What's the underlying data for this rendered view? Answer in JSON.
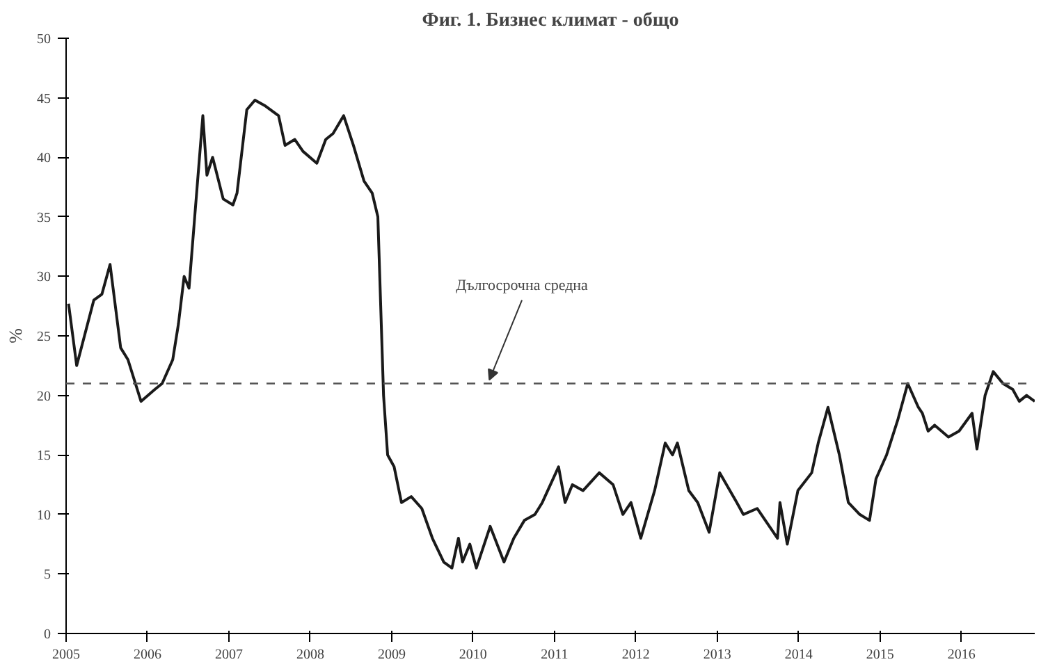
{
  "chart_data": {
    "type": "line",
    "title": "Фиг. 1. Бизнес климат - общо",
    "ylabel": "%",
    "x": [
      2005.03,
      2005.13,
      2005.34,
      2005.44,
      2005.54,
      2005.67,
      2005.76,
      2005.92,
      2006.09,
      2006.18,
      2006.31,
      2006.38,
      2006.45,
      2006.51,
      2006.58,
      2006.68,
      2006.73,
      2006.8,
      2006.93,
      2007.05,
      2007.1,
      2007.22,
      2007.32,
      2007.45,
      2007.61,
      2007.69,
      2007.81,
      2007.91,
      2008.08,
      2008.19,
      2008.28,
      2008.41,
      2008.53,
      2008.66,
      2008.76,
      2008.83,
      2008.9,
      2008.95,
      2009.03,
      2009.12,
      2009.24,
      2009.37,
      2009.5,
      2009.64,
      2009.74,
      2009.82,
      2009.87,
      2009.96,
      2010.04,
      2010.21,
      2010.38,
      2010.5,
      2010.63,
      2010.76,
      2010.85,
      2011.05,
      2011.13,
      2011.22,
      2011.35,
      2011.55,
      2011.72,
      2011.84,
      2011.94,
      2012.06,
      2012.23,
      2012.36,
      2012.45,
      2012.51,
      2012.65,
      2012.76,
      2012.9,
      2013.03,
      2013.24,
      2013.32,
      2013.49,
      2013.74,
      2013.77,
      2013.86,
      2013.99,
      2014.16,
      2014.24,
      2014.36,
      2014.5,
      2014.61,
      2014.75,
      2014.87,
      2014.95,
      2015.08,
      2015.22,
      2015.34,
      2015.47,
      2015.52,
      2015.59,
      2015.67,
      2015.84,
      2015.97,
      2016.13,
      2016.19,
      2016.29,
      2016.39,
      2016.51,
      2016.63,
      2016.71,
      2016.8,
      2016.9
    ],
    "series": [
      {
        "color": "#1a1a1a",
        "values": [
          27.7,
          22.5,
          28,
          28.5,
          31,
          24,
          23,
          19.5,
          20.5,
          21,
          23,
          26,
          30,
          29,
          35,
          43.5,
          38.5,
          40,
          36.5,
          36,
          37,
          44,
          44.8,
          44.3,
          43.5,
          41,
          41.5,
          40.5,
          39.5,
          41.5,
          42,
          43.5,
          41,
          38,
          37,
          35,
          20,
          15,
          14,
          11,
          11.5,
          10.5,
          8,
          6,
          5.5,
          8,
          6,
          7.5,
          5.5,
          9,
          6,
          8,
          9.5,
          10,
          11,
          14,
          11,
          12.5,
          12,
          13.5,
          12.5,
          10,
          11,
          8,
          12,
          16,
          15,
          16,
          12,
          11,
          8.5,
          13.5,
          11,
          10,
          10.5,
          8,
          11,
          7.5,
          12,
          13.5,
          16,
          19,
          15,
          11,
          10,
          9.5,
          13,
          15,
          18,
          21,
          19,
          18.5,
          17,
          17.5,
          16.5,
          17,
          18.5,
          15.5,
          20,
          22,
          21,
          20.5,
          19.5,
          20,
          19.5
        ]
      }
    ],
    "xlim": [
      2005,
      2016.9
    ],
    "xticks": [
      2005,
      2006,
      2007,
      2008,
      2009,
      2010,
      2011,
      2012,
      2013,
      2014,
      2015,
      2016
    ],
    "ylim": [
      0,
      50
    ],
    "yticks": [
      0,
      5,
      10,
      15,
      20,
      25,
      30,
      35,
      40,
      45,
      50
    ],
    "ref_lines": [
      {
        "axis": "y",
        "value": 21,
        "line_style": "dashed",
        "color": "#555555"
      }
    ],
    "annotations": [
      {
        "text": "Дългосрочна средна",
        "x": 2010.2,
        "y": 21
      }
    ],
    "grid": false,
    "marker": "none",
    "line_style": "solid"
  }
}
